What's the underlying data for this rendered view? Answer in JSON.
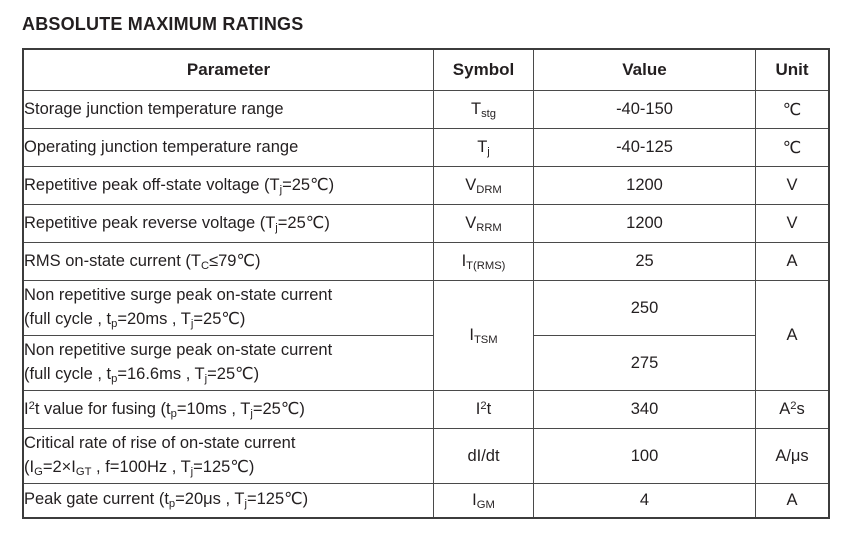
{
  "title": "ABSOLUTE MAXIMUM RATINGS",
  "colors": {
    "text": "#231f20",
    "border": "#4a4a4a",
    "background": "#ffffff"
  },
  "table": {
    "headers": [
      "Parameter",
      "Symbol",
      "Value",
      "Unit"
    ],
    "rows": [
      {
        "parameter": "Storage junction temperature range",
        "symbol": "T~stg~",
        "value": "-40-150",
        "unit": "℃"
      },
      {
        "parameter": "Operating junction temperature range",
        "symbol": "T~j~",
        "value": "-40-125",
        "unit": "℃"
      },
      {
        "parameter": "Repetitive peak off-state voltage (T~j~=25℃)",
        "symbol": "V~DRM~",
        "value": "1200",
        "unit": "V"
      },
      {
        "parameter": "Repetitive peak reverse voltage (T~j~=25℃)",
        "symbol": "V~RRM~",
        "value": "1200",
        "unit": "V"
      },
      {
        "parameter": "RMS on-state current (T~C~≤79℃)",
        "symbol": "I~T(RMS)~",
        "value": "25",
        "unit": "A"
      },
      {
        "parameter": "Non repetitive surge peak on-state current\n(full cycle , t~p~=20ms , T~j~=25℃)",
        "symbol": "I~TSM~",
        "value": "250",
        "unit": "A"
      },
      {
        "parameter": "Non repetitive surge peak on-state current\n(full cycle , t~p~=16.6ms , T~j~=25℃)",
        "value": "275"
      },
      {
        "parameter": "I^2^t value for fusing (t~p~=10ms , T~j~=25℃)",
        "symbol": "I^2^t",
        "value": "340",
        "unit": "A^2^s"
      },
      {
        "parameter": "Critical rate of rise of on-state current\n(I~G~=2×I~GT~ , f=100Hz , T~j~=125℃)",
        "symbol": "dI/dt",
        "value": "100",
        "unit": "A/μs"
      },
      {
        "parameter": "Peak gate current (t~p~=20μs , T~j~=125℃)",
        "symbol": "I~GM~",
        "value": "4",
        "unit": "A"
      }
    ]
  }
}
